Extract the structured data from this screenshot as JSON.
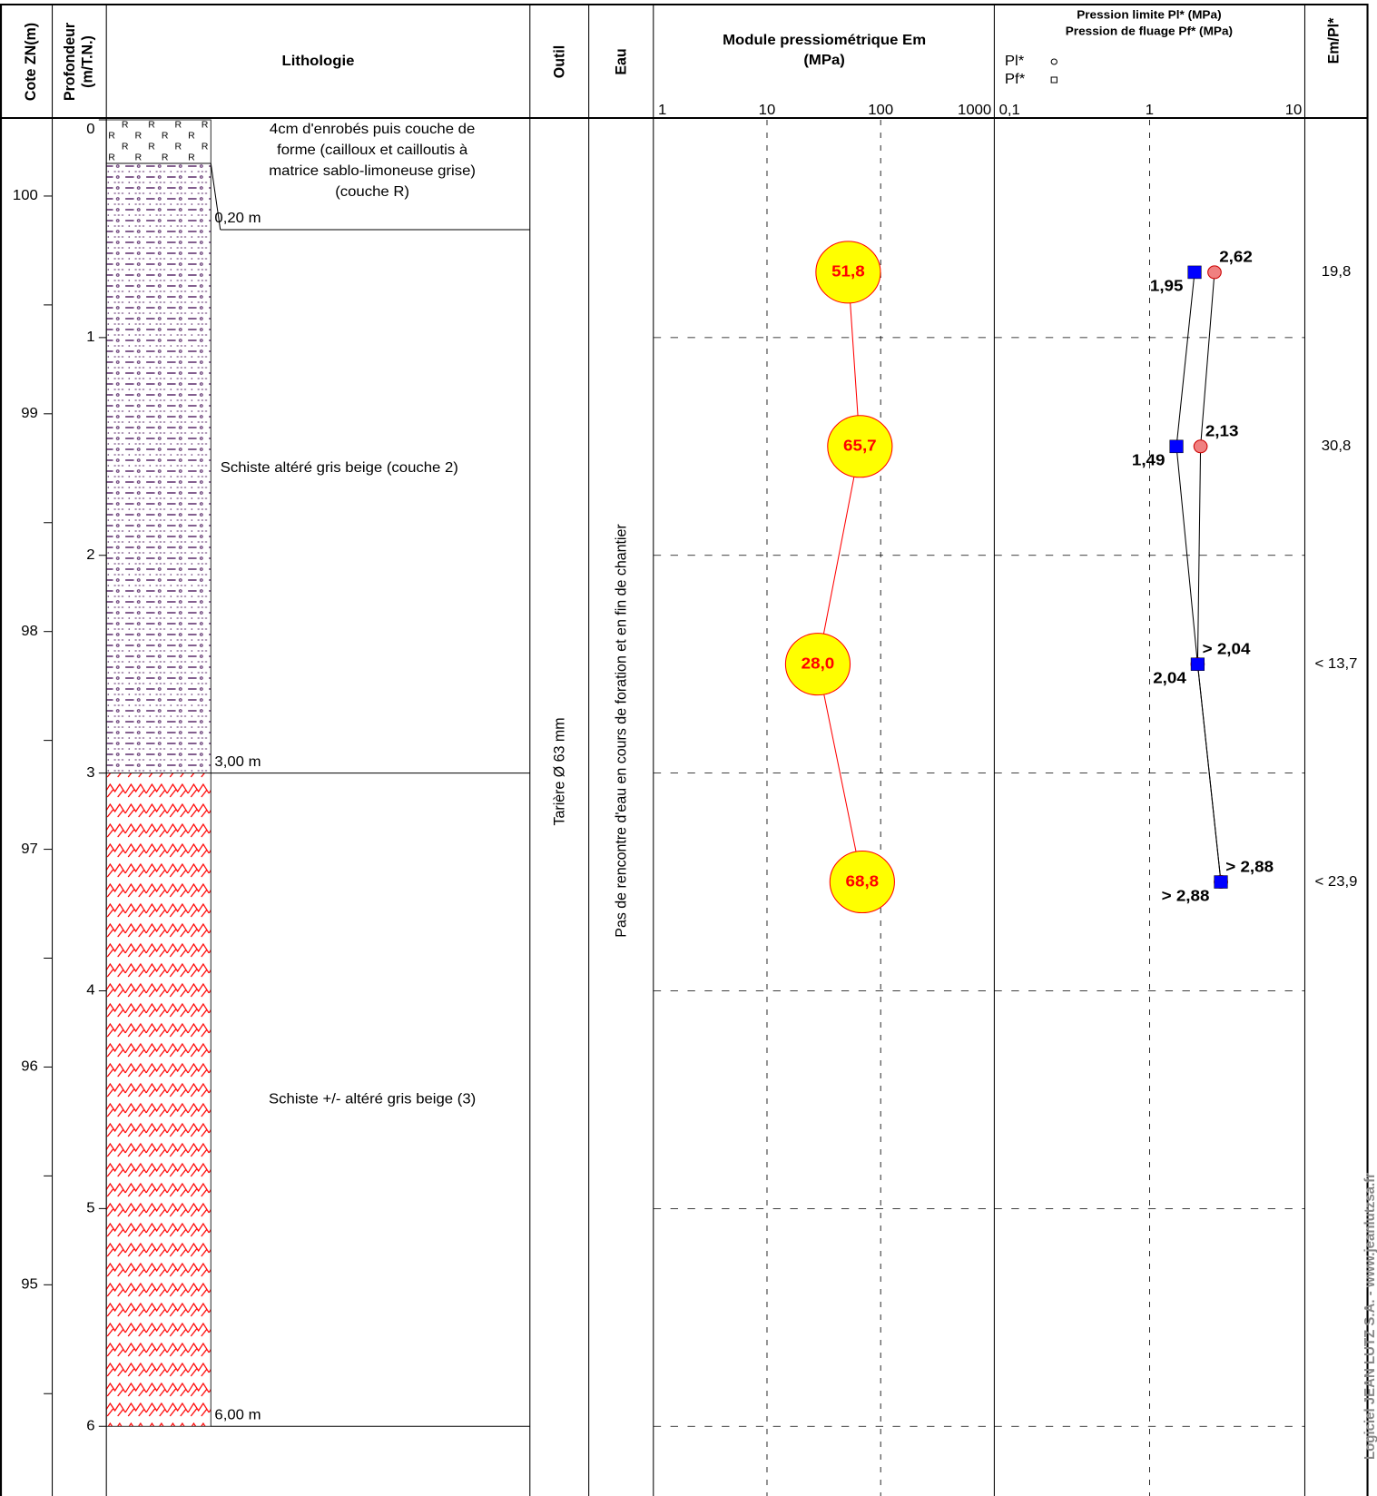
{
  "headers": {
    "cote": "Cote ZN(m)",
    "profondeur": [
      "Profondeur",
      "(m/T.N.)"
    ],
    "lithologie": "Lithologie",
    "outil": "Outil",
    "eau": "Eau",
    "module": [
      "Module pressiométrique Em",
      "(MPa)"
    ],
    "pression": [
      "Pression limite Pl* (MPa)",
      "Pression de fluage Pf* (MPa)"
    ],
    "ratio": "Em/Pl*"
  },
  "depth_axis": {
    "lim": [
      0,
      6.32
    ],
    "ticks": [
      0,
      1,
      2,
      3,
      4,
      5,
      6
    ]
  },
  "cote_axis": {
    "lim": [
      100.35,
      94.03
    ],
    "ticks": [
      100,
      99,
      98,
      97,
      96,
      95
    ],
    "minor_ticks": [
      {
        "value": 99.5,
        "label": ""
      },
      {
        "value": 98.5,
        "label": ""
      },
      {
        "value": 97.5,
        "label": ""
      },
      {
        "value": 96.5,
        "label": ""
      },
      {
        "value": 95.5,
        "label": ""
      },
      {
        "value": 94.5,
        "label": ""
      }
    ]
  },
  "layers": [
    {
      "top": 0,
      "bottom": {
        "value": 0.2,
        "label": "0,20 m"
      },
      "description": [
        "4cm d'enrobés puis couche de",
        "forme (cailloux et cailloutis à",
        "matrice sablo-limoneuse grise)",
        "(couche R)"
      ]
    },
    {
      "top": 0.2,
      "bottom": {
        "value": 3,
        "label": "3,00 m"
      },
      "description": [
        "Schiste altéré gris beige (couche 2)"
      ]
    },
    {
      "top": 3,
      "bottom": {
        "value": 6,
        "label": "6,00 m"
      },
      "description": [
        "Schiste +/- altéré gris beige (3)"
      ]
    }
  ],
  "tool": "Tarière Ø 63 mm",
  "water": "Pas de rencontre d'eau en cours de foration et en fin de chantier",
  "test_depths": [
    0.7,
    1.5,
    2.5,
    3.5
  ],
  "chart_data": [
    {
      "type": "line",
      "log_x": true,
      "xlim": [
        1,
        1000
      ],
      "xticks": [
        1,
        10,
        100,
        1000
      ],
      "grid": true,
      "series": [
        {
          "name": "Em",
          "color": "#ff0000",
          "marker_fill": "#ffff00",
          "values": [
            51.8,
            65.7,
            28.0,
            68.8
          ],
          "value_labels": [
            "51,8",
            "65,7",
            "28,0",
            "68,8"
          ]
        }
      ]
    },
    {
      "type": "line",
      "log_x": true,
      "xlim": [
        0.1,
        10
      ],
      "xticks": [
        {
          "value": 0.1,
          "label": "0,1"
        },
        1,
        10
      ],
      "grid": true,
      "series": [
        {
          "name": "Pl*",
          "color": "#f08080",
          "marker": "circle",
          "values": [
            2.62,
            2.13,
            2.04,
            2.88
          ],
          "value_labels": [
            "2,62",
            "2,13",
            "> 2,04",
            "> 2,88"
          ]
        },
        {
          "name": "Pf*",
          "color": "#0000ff",
          "marker": "square",
          "values": [
            1.95,
            1.49,
            2.04,
            2.88
          ],
          "value_labels": [
            "1,95",
            "1,49",
            "2,04",
            "> 2,88"
          ]
        }
      ]
    }
  ],
  "ratio": {
    "values": [
      19.8,
      30.8,
      13.7,
      23.9
    ],
    "value_labels": [
      "19,8",
      "30,8",
      "< 13,7",
      "< 23,9"
    ]
  },
  "watermark": "Logiciel JEAN LUTZ S.A. - www.jeanlutzsa.fr"
}
